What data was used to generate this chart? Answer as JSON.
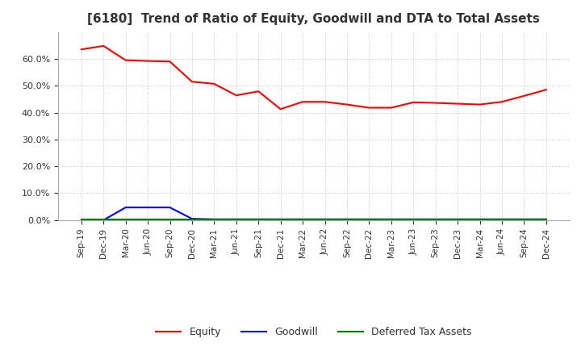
{
  "title": "[6180]  Trend of Ratio of Equity, Goodwill and DTA to Total Assets",
  "title_fontsize": 11,
  "title_color": "#333333",
  "labels": [
    "Sep-19",
    "Dec-19",
    "Mar-20",
    "Jun-20",
    "Sep-20",
    "Dec-20",
    "Mar-21",
    "Jun-21",
    "Sep-21",
    "Dec-21",
    "Mar-22",
    "Jun-22",
    "Sep-22",
    "Dec-22",
    "Mar-23",
    "Jun-23",
    "Sep-23",
    "Dec-23",
    "Mar-24",
    "Jun-24",
    "Sep-24",
    "Dec-24"
  ],
  "equity": [
    0.635,
    0.648,
    0.595,
    0.592,
    0.59,
    0.515,
    0.507,
    0.464,
    0.479,
    0.413,
    0.44,
    0.44,
    0.43,
    0.418,
    0.418,
    0.438,
    0.436,
    0.433,
    0.43,
    0.44,
    0.462,
    0.485
  ],
  "goodwill": [
    0.0,
    0.0,
    0.047,
    0.047,
    0.047,
    0.005,
    0.003,
    0.003,
    0.003,
    0.003,
    0.003,
    0.003,
    0.003,
    0.003,
    0.003,
    0.003,
    0.003,
    0.003,
    0.003,
    0.003,
    0.003,
    0.003
  ],
  "dta": [
    0.003,
    0.003,
    0.003,
    0.003,
    0.003,
    0.003,
    0.003,
    0.003,
    0.003,
    0.003,
    0.003,
    0.003,
    0.003,
    0.003,
    0.003,
    0.003,
    0.003,
    0.003,
    0.003,
    0.003,
    0.003,
    0.003
  ],
  "equity_color": "#ff0000",
  "goodwill_color": "#0000ff",
  "dta_color": "#008000",
  "ylim": [
    0.0,
    0.7
  ],
  "yticks": [
    0.0,
    0.1,
    0.2,
    0.3,
    0.4,
    0.5,
    0.6
  ],
  "grid_color": "#aaaaaa",
  "bg_color": "#ffffff",
  "legend_labels": [
    "Equity",
    "Goodwill",
    "Deferred Tax Assets"
  ],
  "tick_color": "#333333",
  "tick_fontsize": 7.5,
  "ytick_fontsize": 8
}
